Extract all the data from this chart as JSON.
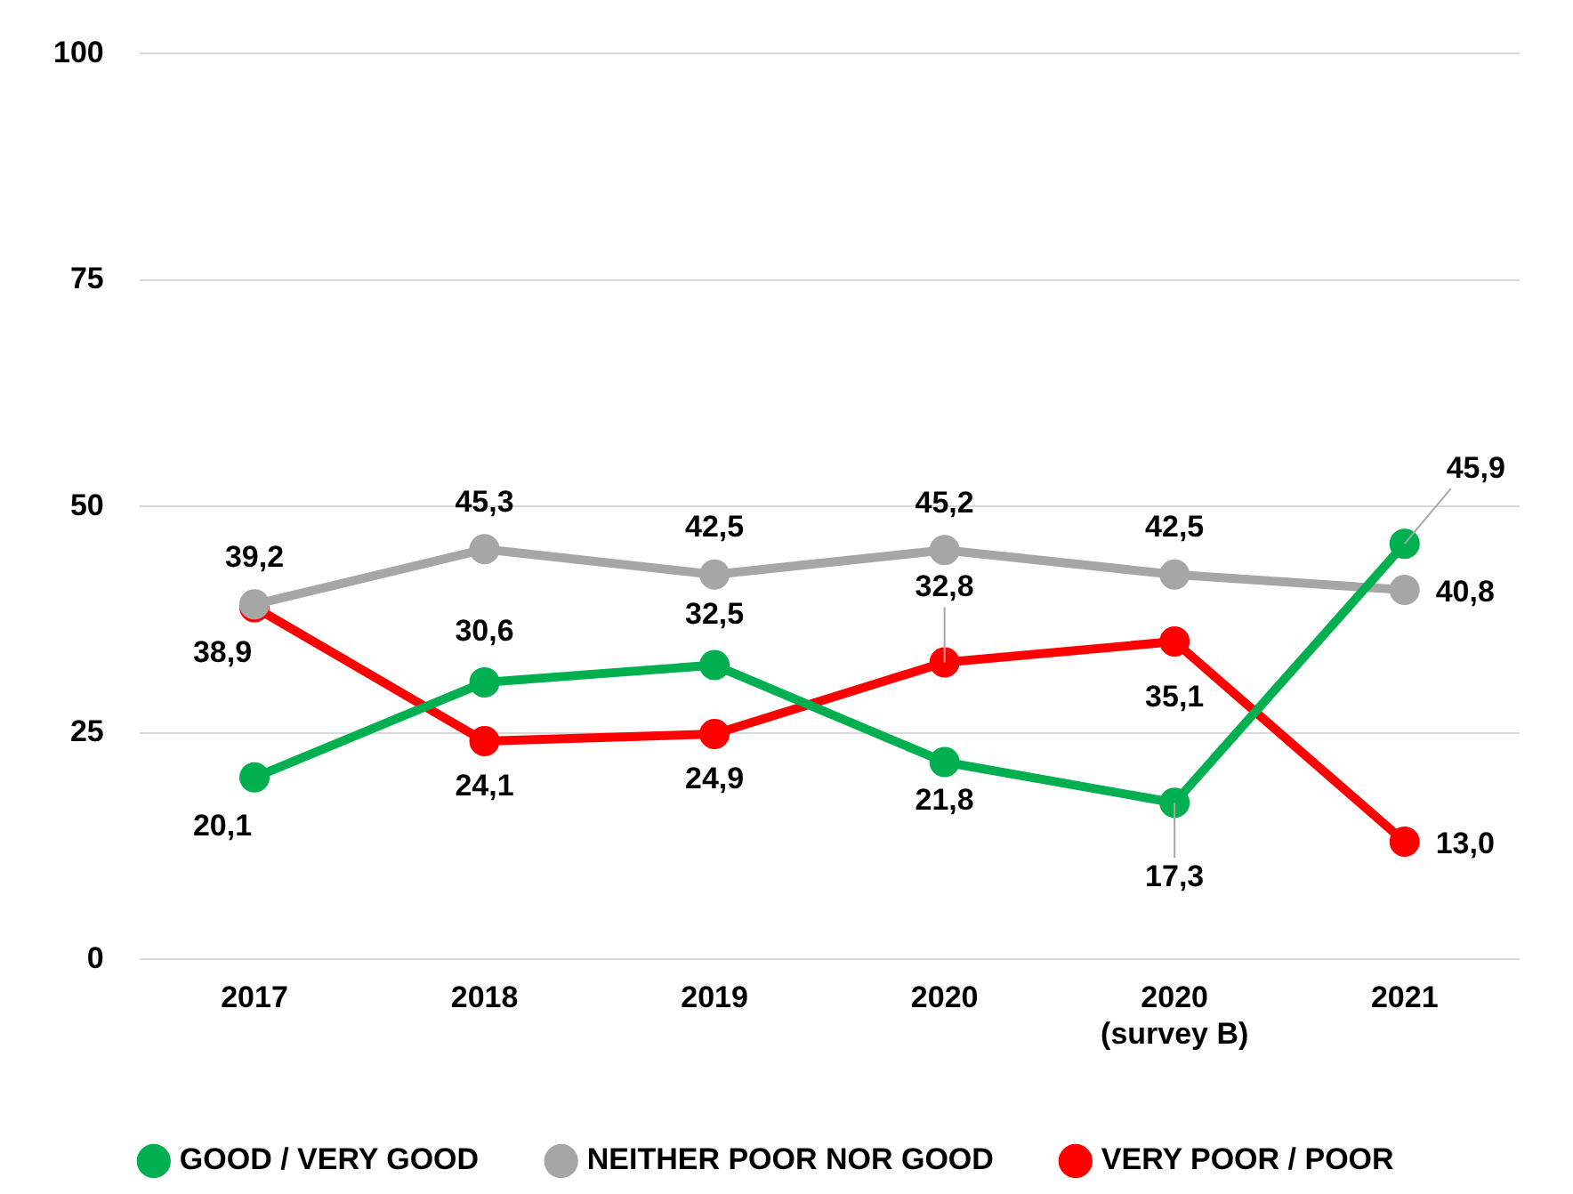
{
  "chart_data": {
    "type": "line",
    "categories": [
      "2017",
      "2018",
      "2019",
      "2020",
      "2020\n(survey B)",
      "2021"
    ],
    "series": [
      {
        "name": "GOOD / VERY GOOD",
        "color": "#00b050",
        "values": [
          20.1,
          30.6,
          32.5,
          21.8,
          17.3,
          45.9
        ],
        "value_labels": [
          "20,1",
          "30,6",
          "32,5",
          "21,8",
          "17,3",
          "45,9"
        ]
      },
      {
        "name": "NEITHER POOR NOR GOOD",
        "color": "#a6a6a6",
        "values": [
          39.2,
          45.3,
          42.5,
          45.2,
          42.5,
          40.8
        ],
        "value_labels": [
          "39,2",
          "45,3",
          "42,5",
          "45,2",
          "42,5",
          "40,8"
        ]
      },
      {
        "name": "VERY POOR / POOR",
        "color": "#ff0000",
        "values": [
          38.9,
          24.1,
          24.9,
          32.8,
          35.1,
          13.0
        ],
        "value_labels": [
          "38,9",
          "24,1",
          "24,9",
          "32,8",
          "35,1",
          "13,0"
        ]
      }
    ],
    "ylim": [
      0,
      100
    ],
    "yticks": [
      0,
      25,
      50,
      75,
      100
    ],
    "grid": "y",
    "legend": "bottom",
    "marker": "circle",
    "line_style": "solid"
  }
}
